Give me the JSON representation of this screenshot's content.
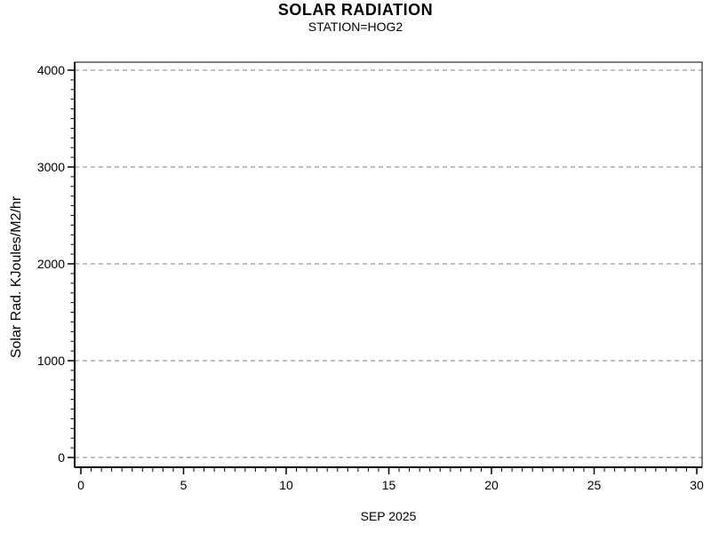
{
  "chart_data": {
    "type": "line",
    "title": "SOLAR RADIATION",
    "subtitle": "STATION=HOG2",
    "xlabel": "SEP 2025",
    "ylabel": "Solar Rad. KJoules/M2/hr",
    "x_axis": {
      "min": 0,
      "max": 30,
      "major_ticks": [
        0,
        5,
        10,
        15,
        20,
        25,
        30
      ],
      "tick_labels": [
        "0",
        "5",
        "10",
        "15",
        "20",
        "25",
        "30"
      ],
      "minor_tick_interval": 0.5,
      "grid": false
    },
    "y_axis": {
      "min": 0,
      "max": 4000,
      "major_ticks": [
        0,
        1000,
        2000,
        3000,
        4000
      ],
      "tick_labels": [
        "0",
        "1000",
        "2000",
        "3000",
        "4000"
      ],
      "minor_tick_interval": 100,
      "grid": true
    },
    "series": [],
    "grid_on": true,
    "grid_style": "dashed",
    "grid_color": "#808080",
    "axis_color": "#000000",
    "background_color": "#ffffff",
    "legend_position": "none"
  }
}
